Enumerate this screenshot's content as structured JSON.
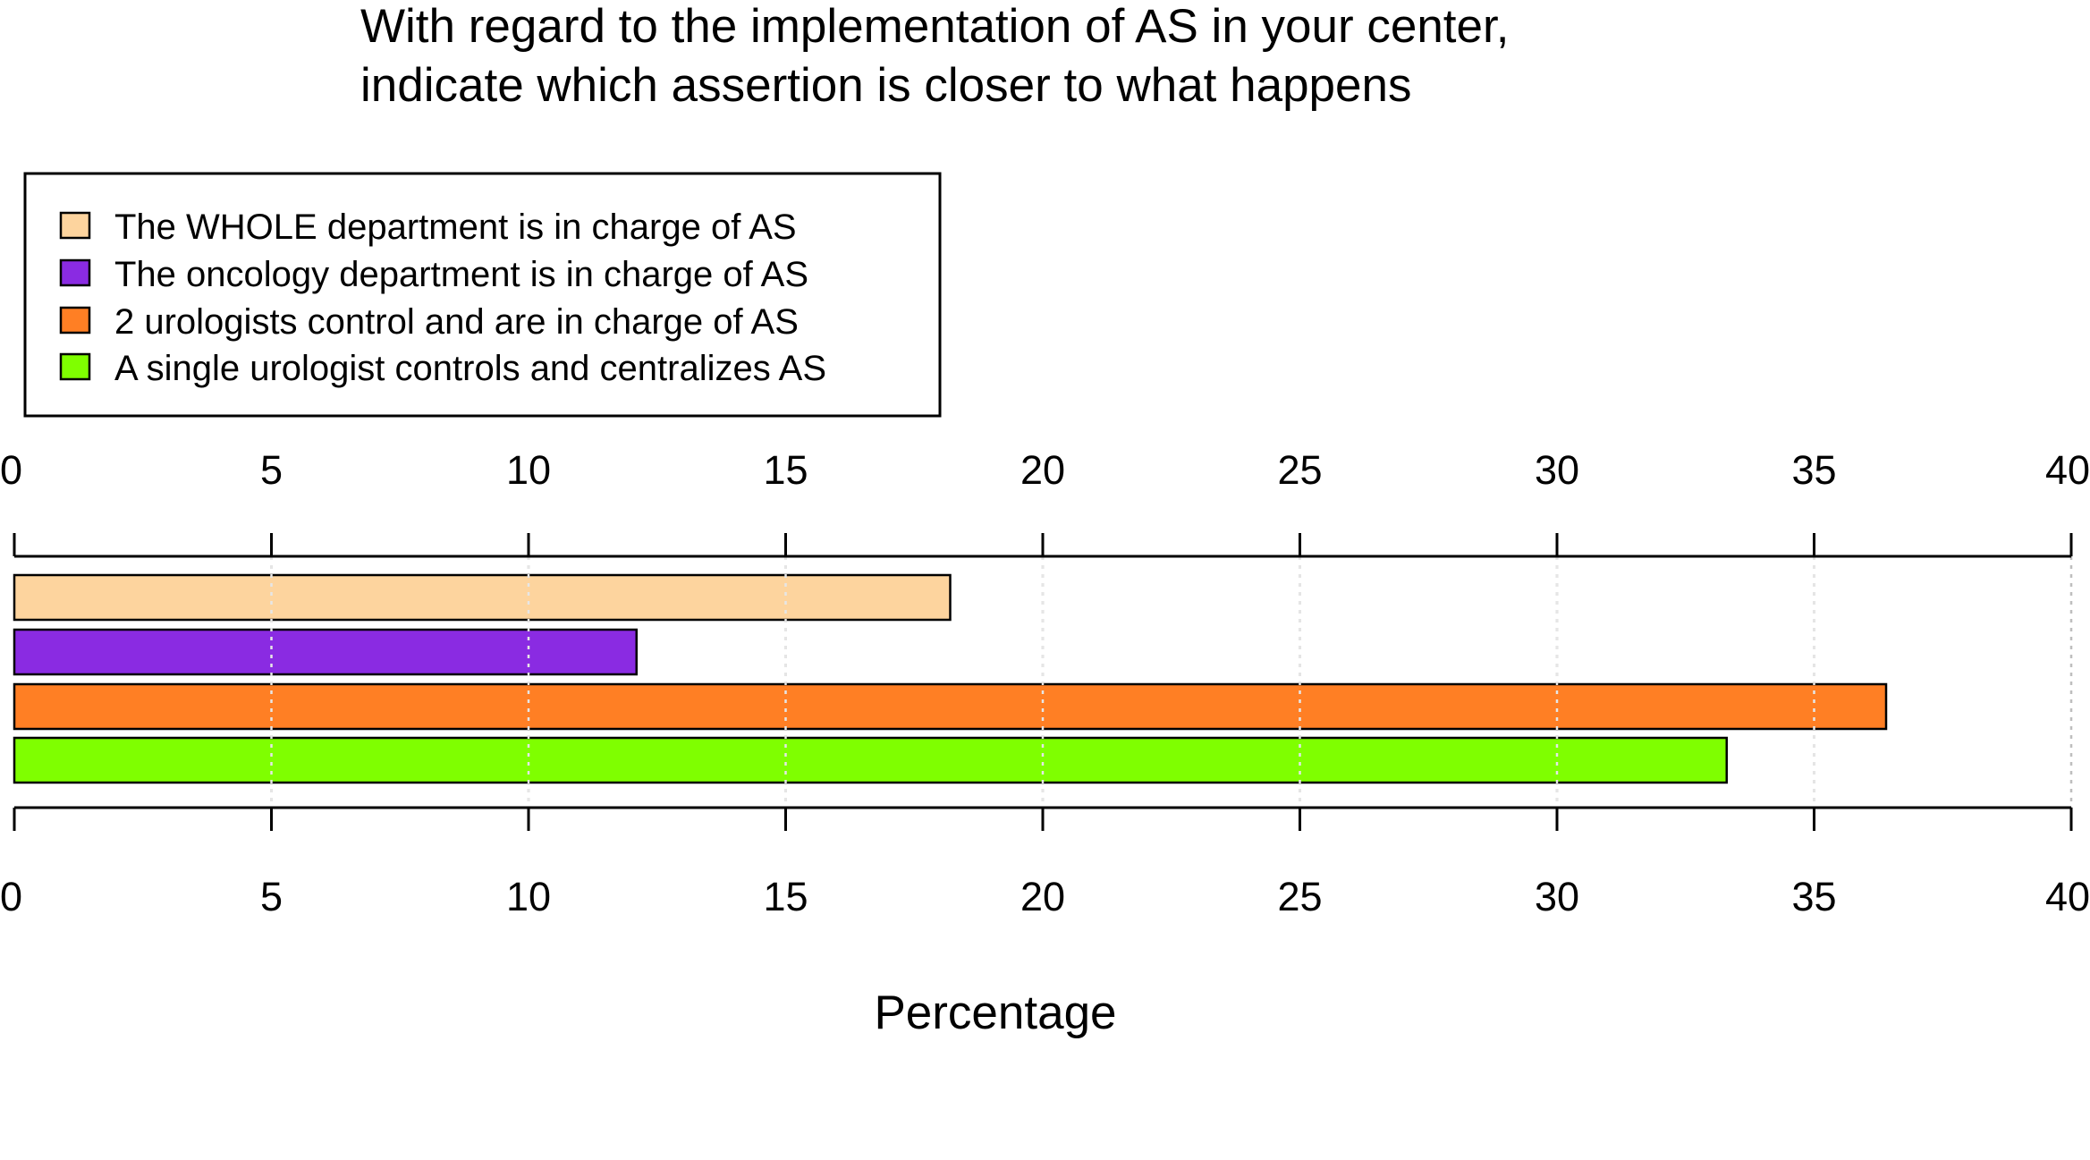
{
  "chart_data": {
    "type": "bar",
    "orientation": "horizontal",
    "title_lines": [
      "With regard to the implementation of AS in your center,",
      "indicate which assertion is closer to what happens"
    ],
    "xlabel": "Percentage",
    "ylabel": "",
    "xlim": [
      0,
      40
    ],
    "ticks": [
      0,
      5,
      10,
      15,
      20,
      25,
      30,
      35,
      40
    ],
    "tick_labels": [
      "0",
      "5",
      "10",
      "15",
      "20",
      "25",
      "30",
      "35",
      "40"
    ],
    "axis_top_and_bottom": true,
    "grid": "vertical dotted",
    "legend_position": "top-left",
    "series": [
      {
        "name": "The WHOLE department is in charge of AS",
        "value": 18.2,
        "color": "#FDD49E"
      },
      {
        "name": "The oncology department is in charge of AS",
        "value": 12.1,
        "color": "#8A2BE2"
      },
      {
        "name": "2 urologists control and are in charge of AS",
        "value": 36.4,
        "color": "#FF7F24"
      },
      {
        "name": "A single urologist controls and centralizes AS",
        "value": 33.3,
        "color": "#7FFF00"
      }
    ]
  }
}
